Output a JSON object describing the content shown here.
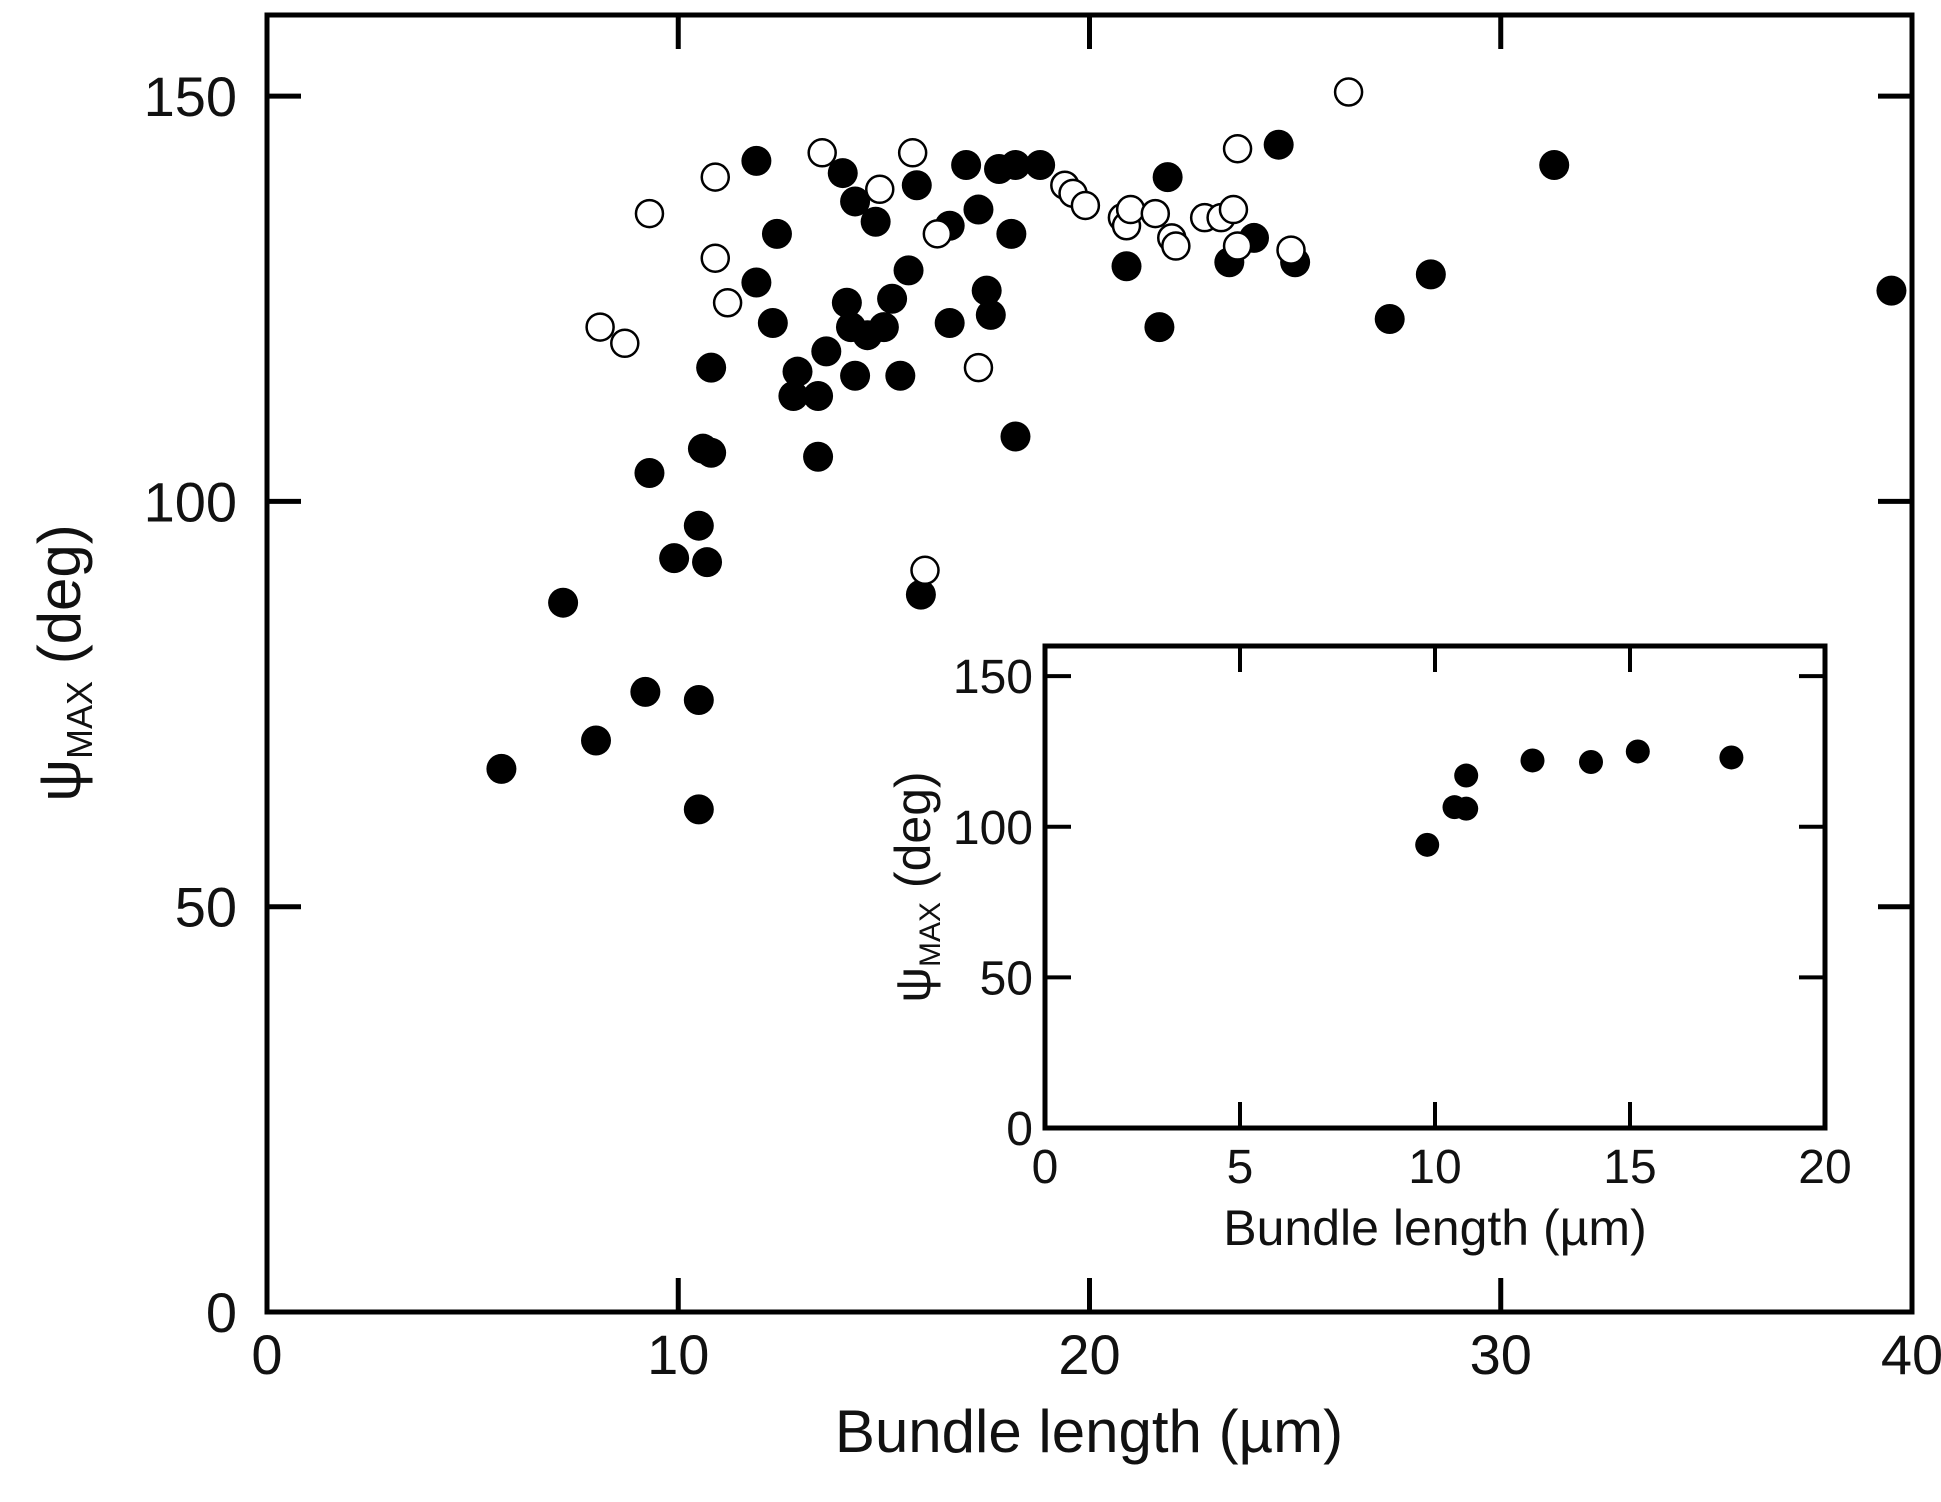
{
  "chart_data": [
    {
      "type": "scatter",
      "xlabel": "Bundle length (µm)",
      "ylabel": "ψ",
      "ylabel_sub": "MAX",
      "ylabel_unit": " (deg)",
      "xlim": [
        0,
        40
      ],
      "ylim": [
        0,
        160
      ],
      "xticks": [
        0,
        10,
        20,
        30,
        40
      ],
      "yticks": [
        0,
        50,
        100,
        150
      ],
      "grid": false,
      "series": [
        {
          "marker": "filled-circle",
          "color": "#000000",
          "points": [
            [
              5.7,
              67
            ],
            [
              7.2,
              87.5
            ],
            [
              8.0,
              70.5
            ],
            [
              9.2,
              76.5
            ],
            [
              9.3,
              103.5
            ],
            [
              9.9,
              93
            ],
            [
              10.5,
              62
            ],
            [
              10.5,
              75.5
            ],
            [
              10.5,
              97
            ],
            [
              10.6,
              106.5
            ],
            [
              10.7,
              92.5
            ],
            [
              10.8,
              106
            ],
            [
              10.8,
              116.5
            ],
            [
              11.9,
              127
            ],
            [
              11.9,
              142
            ],
            [
              12.3,
              122
            ],
            [
              12.4,
              133
            ],
            [
              12.8,
              113
            ],
            [
              12.9,
              116
            ],
            [
              13.4,
              113
            ],
            [
              13.4,
              105.5
            ],
            [
              13.6,
              118.5
            ],
            [
              14.0,
              140.5
            ],
            [
              14.1,
              124.5
            ],
            [
              14.2,
              121.5
            ],
            [
              14.3,
              115.5
            ],
            [
              14.3,
              137
            ],
            [
              14.6,
              120.5
            ],
            [
              14.8,
              134.5
            ],
            [
              15.0,
              121.5
            ],
            [
              15.2,
              125
            ],
            [
              15.4,
              115.5
            ],
            [
              15.6,
              128.5
            ],
            [
              15.8,
              139
            ],
            [
              15.9,
              88.5
            ],
            [
              16.6,
              122
            ],
            [
              16.6,
              134
            ],
            [
              17.0,
              141.5
            ],
            [
              17.3,
              136
            ],
            [
              17.5,
              126
            ],
            [
              17.6,
              123
            ],
            [
              17.8,
              141
            ],
            [
              18.1,
              133
            ],
            [
              18.2,
              141.5
            ],
            [
              18.2,
              108
            ],
            [
              18.8,
              141.5
            ],
            [
              20.9,
              129
            ],
            [
              21.7,
              121.5
            ],
            [
              21.9,
              140
            ],
            [
              23.4,
              129.5
            ],
            [
              24.0,
              132.5
            ],
            [
              24.6,
              144
            ],
            [
              25.0,
              129.5
            ],
            [
              27.3,
              122.5
            ],
            [
              28.3,
              128
            ],
            [
              31.3,
              141.5
            ],
            [
              39.5,
              126
            ]
          ]
        },
        {
          "marker": "open-circle",
          "color": "#000000",
          "points": [
            [
              8.1,
              121.5
            ],
            [
              8.7,
              119.5
            ],
            [
              9.3,
              135.5
            ],
            [
              10.9,
              140
            ],
            [
              10.9,
              130
            ],
            [
              11.2,
              124.5
            ],
            [
              13.5,
              143
            ],
            [
              14.9,
              138.5
            ],
            [
              15.7,
              143
            ],
            [
              16.0,
              91.5
            ],
            [
              16.3,
              133
            ],
            [
              17.3,
              116.5
            ],
            [
              19.4,
              139
            ],
            [
              19.6,
              138
            ],
            [
              19.9,
              136.5
            ],
            [
              20.8,
              135
            ],
            [
              20.9,
              134
            ],
            [
              21.0,
              136
            ],
            [
              21.6,
              135.5
            ],
            [
              22.0,
              132.5
            ],
            [
              22.1,
              131.5
            ],
            [
              22.8,
              135
            ],
            [
              23.2,
              135
            ],
            [
              23.5,
              136
            ],
            [
              23.6,
              131.5
            ],
            [
              23.6,
              143.5
            ],
            [
              24.9,
              131
            ],
            [
              26.3,
              150.5
            ]
          ]
        }
      ]
    },
    {
      "type": "scatter",
      "inset": true,
      "xlabel": "Bundle length (µm)",
      "ylabel": "ψ",
      "ylabel_sub": "MAX",
      "ylabel_unit": " (deg)",
      "xlim": [
        0,
        20
      ],
      "ylim": [
        0,
        160
      ],
      "xticks": [
        0,
        5,
        10,
        15,
        20
      ],
      "yticks": [
        0,
        50,
        100,
        150
      ],
      "grid": false,
      "series": [
        {
          "marker": "filled-circle",
          "color": "#000000",
          "points": [
            [
              9.8,
              94
            ],
            [
              10.5,
              106.5
            ],
            [
              10.8,
              106
            ],
            [
              10.8,
              117
            ],
            [
              12.5,
              122
            ],
            [
              14.0,
              121.5
            ],
            [
              15.2,
              125
            ],
            [
              17.6,
              123
            ]
          ]
        }
      ]
    }
  ]
}
